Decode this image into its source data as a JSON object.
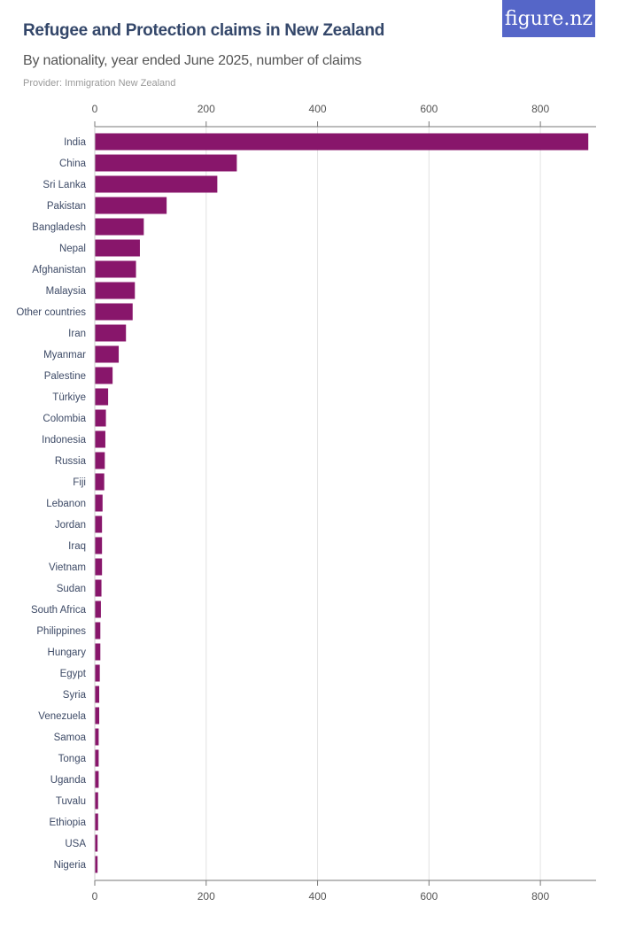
{
  "header": {
    "title": "Refugee and Protection claims in New Zealand",
    "subtitle": "By nationality, year ended June 2025, number of claims",
    "provider": "Provider: Immigration New Zealand",
    "logo": "figure.nz"
  },
  "colors": {
    "bar": "#88166b",
    "logo_bg": "#5566c8",
    "title": "#34476a"
  },
  "chart_data": {
    "type": "bar",
    "orientation": "horizontal",
    "title": "Refugee and Protection claims in New Zealand",
    "xlim": [
      0,
      900
    ],
    "ticks": [
      0,
      200,
      400,
      600,
      800
    ],
    "grid": true,
    "categories": [
      "India",
      "China",
      "Sri Lanka",
      "Pakistan",
      "Bangladesh",
      "Nepal",
      "Afghanistan",
      "Malaysia",
      "Other countries",
      "Iran",
      "Myanmar",
      "Palestine",
      "Türkiye",
      "Colombia",
      "Indonesia",
      "Russia",
      "Fiji",
      "Lebanon",
      "Jordan",
      "Iraq",
      "Vietnam",
      "Sudan",
      "South Africa",
      "Philippines",
      "Hungary",
      "Egypt",
      "Syria",
      "Venezuela",
      "Samoa",
      "Tonga",
      "Uganda",
      "Tuvalu",
      "Ethiopia",
      "USA",
      "Nigeria"
    ],
    "values": [
      886,
      255,
      220,
      129,
      88,
      81,
      74,
      72,
      68,
      56,
      43,
      32,
      24,
      20,
      19,
      18,
      17,
      14,
      13,
      13,
      13,
      12,
      11,
      10,
      10,
      9,
      8,
      8,
      7,
      7,
      7,
      6,
      6,
      5,
      5
    ]
  }
}
